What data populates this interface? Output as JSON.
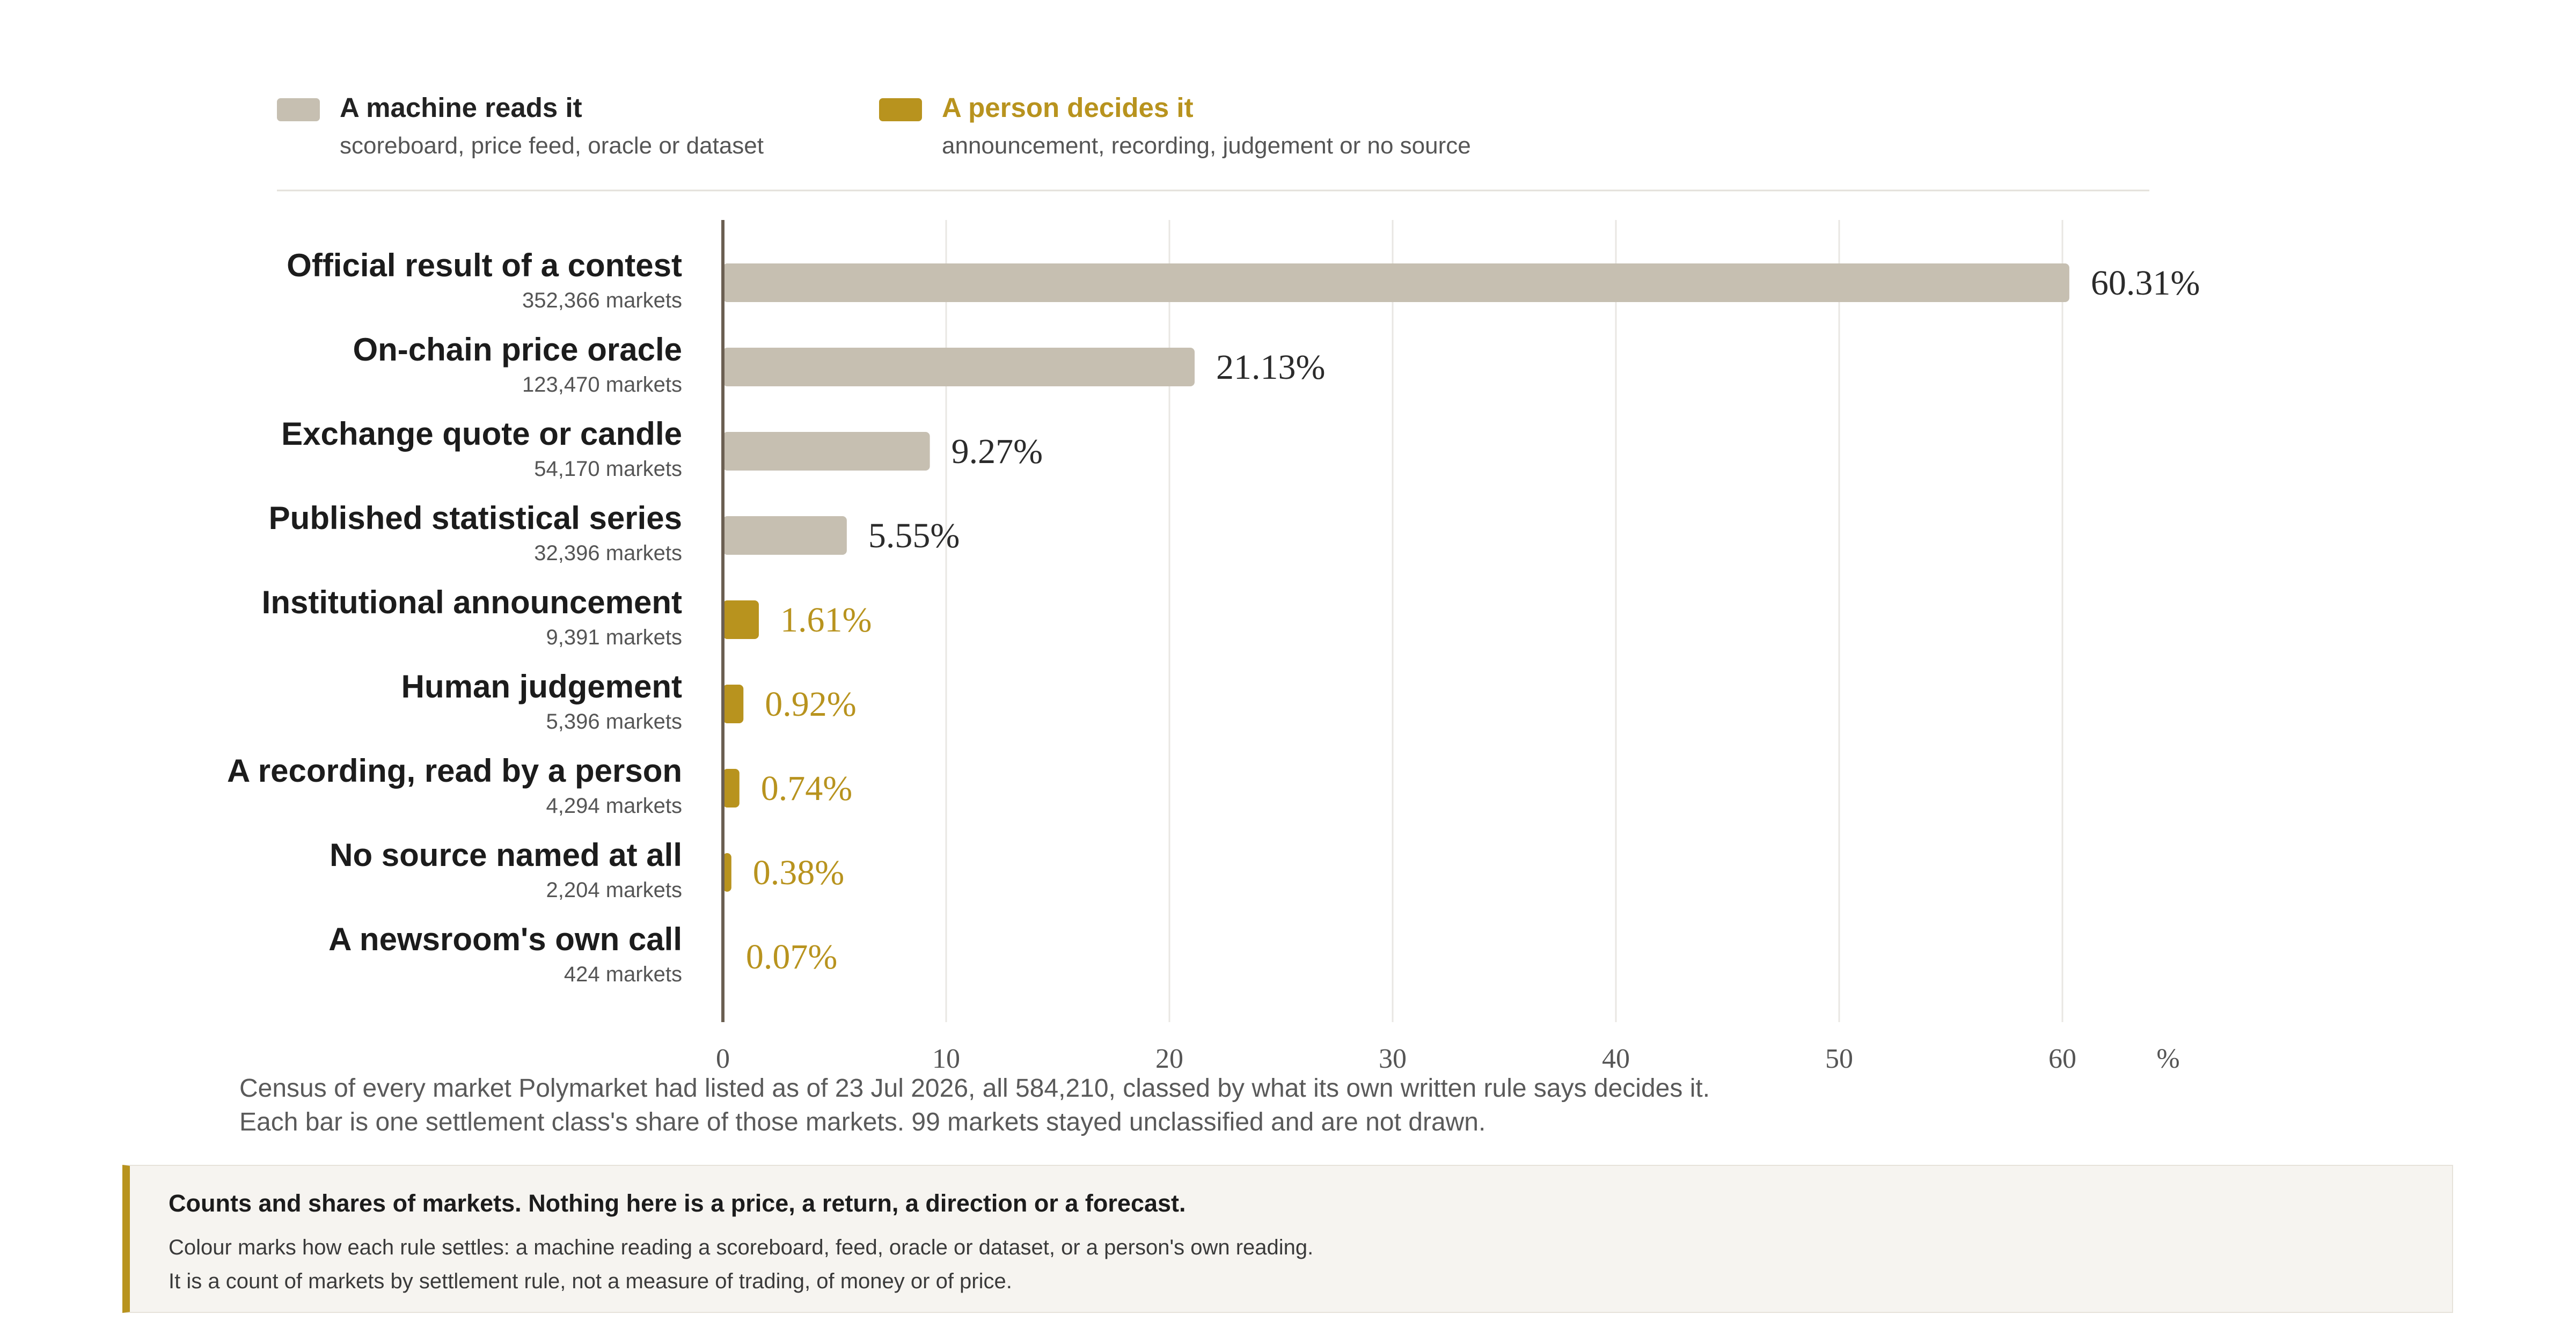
{
  "legend": [
    {
      "label": "A machine reads it",
      "sublabel": "scoreboard, price feed, oracle or dataset",
      "color": "#c6bfb1",
      "text_color": "#222222"
    },
    {
      "label": "A person decides it",
      "sublabel": "announcement, recording, judgement or no source",
      "color": "#b8931e",
      "text_color": "#b8931e"
    }
  ],
  "chart_data": {
    "type": "bar",
    "orientation": "horizontal",
    "categories": [
      "Official result of a contest",
      "On-chain price oracle",
      "Exchange quote or candle",
      "Published statistical series",
      "Institutional announcement",
      "Human judgement",
      "A recording, read by a person",
      "No source named at all",
      "A newsroom's own call"
    ],
    "sublabels": [
      "352,366 markets",
      "123,470 markets",
      "54,170 markets",
      "32,396 markets",
      "9,391 markets",
      "5,396 markets",
      "4,294 markets",
      "2,204 markets",
      "424 markets"
    ],
    "values": [
      60.31,
      21.13,
      9.27,
      5.55,
      1.61,
      0.92,
      0.74,
      0.38,
      0.07
    ],
    "value_labels": [
      "60.31%",
      "21.13%",
      "9.27%",
      "5.55%",
      "1.61%",
      "0.92%",
      "0.74%",
      "0.38%",
      "0.07%"
    ],
    "groups": [
      "A machine reads it",
      "A machine reads it",
      "A machine reads it",
      "A machine reads it",
      "A person decides it",
      "A person decides it",
      "A person decides it",
      "A person decides it",
      "A person decides it"
    ],
    "xlim": [
      0,
      70
    ],
    "xticks": [
      0,
      10,
      20,
      30,
      40,
      50,
      60
    ],
    "xunit": "%",
    "grid": true,
    "legend_position": "top-left"
  },
  "caption": {
    "line1": "Census of every market Polymarket had listed as of 23 Jul 2026, all 584,210, classed by what its own written rule says decides it.",
    "line2": "Each bar is one settlement class's share of those markets. 99 markets stayed unclassified and are not drawn."
  },
  "note": {
    "title": "Counts and shares of markets. Nothing here is a price, a return, a direction or a forecast.",
    "line1": "Colour marks how each rule settles: a machine reading a scoreboard, feed, oracle or dataset, or a person's own reading.",
    "line2": "It is a count of markets by settlement rule, not a measure of trading, of money or of price."
  }
}
